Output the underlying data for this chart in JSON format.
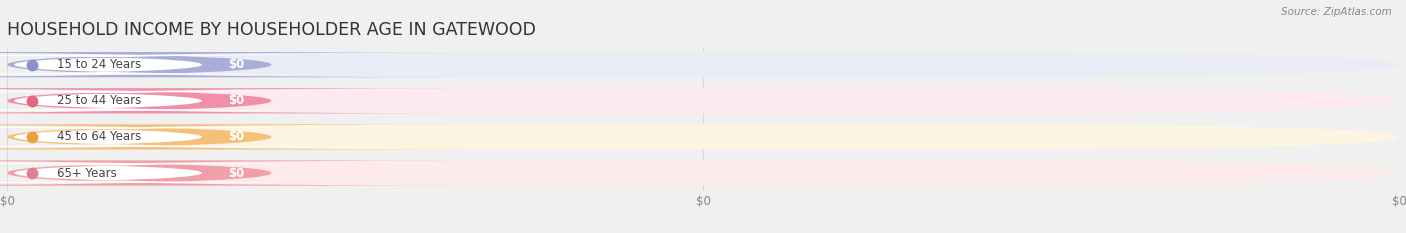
{
  "title": "HOUSEHOLD INCOME BY HOUSEHOLDER AGE IN GATEWOOD",
  "source": "Source: ZipAtlas.com",
  "categories": [
    "15 to 24 Years",
    "25 to 44 Years",
    "45 to 64 Years",
    "65+ Years"
  ],
  "values": [
    0,
    0,
    0,
    0
  ],
  "bar_colors": [
    "#a8aed8",
    "#f090a8",
    "#f5c07a",
    "#f0a0a8"
  ],
  "bar_bg_colors": [
    "#eaecf5",
    "#fdeaee",
    "#fef4e2",
    "#fdeaea"
  ],
  "label_dot_colors": [
    "#8890cc",
    "#e06880",
    "#e8a040",
    "#e08090"
  ],
  "value_badge_colors": [
    "#a8aed8",
    "#f090a8",
    "#f5c07a",
    "#f0a0a8"
  ],
  "background_color": "#f0f0f0",
  "grid_color": "#d8d8d8",
  "title_color": "#333333",
  "source_color": "#888888",
  "label_text_color": "#444444",
  "tick_color": "#888888"
}
